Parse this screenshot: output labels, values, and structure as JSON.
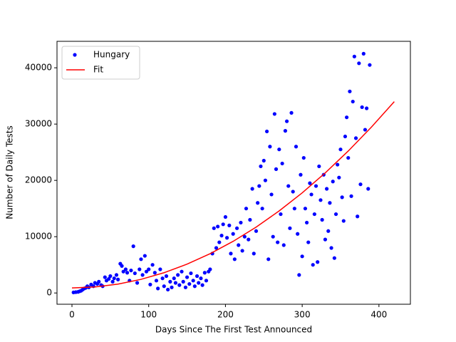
{
  "chart_data": {
    "type": "scatter",
    "xlabel": "Days Since The First Test Announced",
    "ylabel": "Number of Daily Tests",
    "xlim": [
      -19.5,
      441
    ],
    "xticks": [
      0,
      100,
      200,
      300,
      400
    ],
    "ylim": [
      -2000,
      44700
    ],
    "yticks": [
      0,
      10000,
      20000,
      30000,
      40000
    ],
    "legend": "upper left",
    "series": [
      {
        "name": "Hungary",
        "color": "#0000ff",
        "style": "marker",
        "x": [
          2,
          5,
          8,
          10,
          12,
          14,
          16,
          18,
          20,
          22,
          25,
          28,
          30,
          33,
          35,
          38,
          40,
          43,
          45,
          48,
          50,
          53,
          55,
          58,
          60,
          63,
          65,
          67,
          70,
          72,
          75,
          77,
          80,
          82,
          85,
          88,
          90,
          92,
          95,
          97,
          100,
          102,
          105,
          108,
          110,
          112,
          115,
          118,
          120,
          123,
          125,
          128,
          130,
          133,
          135,
          138,
          140,
          143,
          145,
          148,
          150,
          153,
          155,
          158,
          160,
          163,
          165,
          168,
          170,
          173,
          175,
          178,
          180,
          183,
          185,
          188,
          190,
          192,
          195,
          197,
          200,
          202,
          205,
          207,
          210,
          212,
          215,
          217,
          220,
          222,
          225,
          227,
          230,
          232,
          235,
          237,
          240,
          242,
          244,
          246,
          248,
          250,
          252,
          254,
          256,
          258,
          260,
          262,
          264,
          266,
          268,
          270,
          272,
          274,
          276,
          278,
          280,
          282,
          284,
          286,
          288,
          290,
          292,
          294,
          296,
          298,
          300,
          302,
          304,
          306,
          308,
          310,
          312,
          314,
          316,
          318,
          320,
          322,
          324,
          326,
          328,
          330,
          332,
          334,
          336,
          338,
          340,
          342,
          344,
          346,
          348,
          350,
          352,
          354,
          356,
          358,
          360,
          362,
          364,
          366,
          368,
          370,
          372,
          374,
          376,
          378,
          380,
          382,
          384,
          386,
          388
        ],
        "values": [
          100,
          150,
          200,
          300,
          400,
          600,
          800,
          900,
          1200,
          1000,
          1500,
          1200,
          1800,
          1600,
          2000,
          1400,
          1200,
          2800,
          2200,
          2500,
          3000,
          2000,
          2600,
          3200,
          2400,
          5200,
          4800,
          3800,
          4200,
          3600,
          2200,
          4000,
          8300,
          3500,
          1800,
          4200,
          6000,
          3200,
          6600,
          3800,
          4200,
          1500,
          5000,
          3600,
          2200,
          800,
          4200,
          2600,
          1200,
          3000,
          600,
          2000,
          1000,
          2600,
          1800,
          3200,
          1400,
          3800,
          2000,
          1000,
          2800,
          1600,
          3500,
          2200,
          1200,
          3000,
          1800,
          2600,
          1400,
          3600,
          2200,
          3800,
          4200,
          7000,
          11500,
          8000,
          11800,
          9000,
          10200,
          12200,
          13500,
          9800,
          12000,
          7000,
          10500,
          6000,
          11500,
          8500,
          12500,
          7500,
          10000,
          15000,
          9500,
          13000,
          18500,
          7000,
          11000,
          16000,
          19000,
          22500,
          15000,
          23500,
          20000,
          28700,
          6000,
          26000,
          17500,
          10000,
          31800,
          22000,
          9000,
          25500,
          14000,
          23000,
          8500,
          28800,
          30500,
          19000,
          11500,
          32000,
          18000,
          15000,
          26000,
          10500,
          3200,
          21000,
          6500,
          24000,
          15000,
          12500,
          9000,
          19500,
          17500,
          5000,
          14000,
          19000,
          5500,
          22500,
          16500,
          13000,
          21000,
          9500,
          18500,
          11000,
          16000,
          8000,
          19800,
          6200,
          14000,
          22800,
          20500,
          25500,
          17000,
          12800,
          27800,
          31200,
          24000,
          35800,
          17200,
          34000,
          42000,
          27500,
          13600,
          40800,
          19300,
          33000,
          42500,
          29000,
          32800,
          18500,
          40500
        ]
      },
      {
        "name": "Fit",
        "color": "#ff0000",
        "style": "line",
        "x": [
          0,
          30,
          60,
          90,
          120,
          150,
          180,
          210,
          240,
          270,
          300,
          330,
          360,
          390,
          420
        ],
        "values": [
          900,
          1069,
          1575,
          2420,
          3601,
          5121,
          6978,
          9173,
          11706,
          14576,
          17784,
          21330,
          25214,
          29435,
          33993
        ]
      }
    ]
  }
}
